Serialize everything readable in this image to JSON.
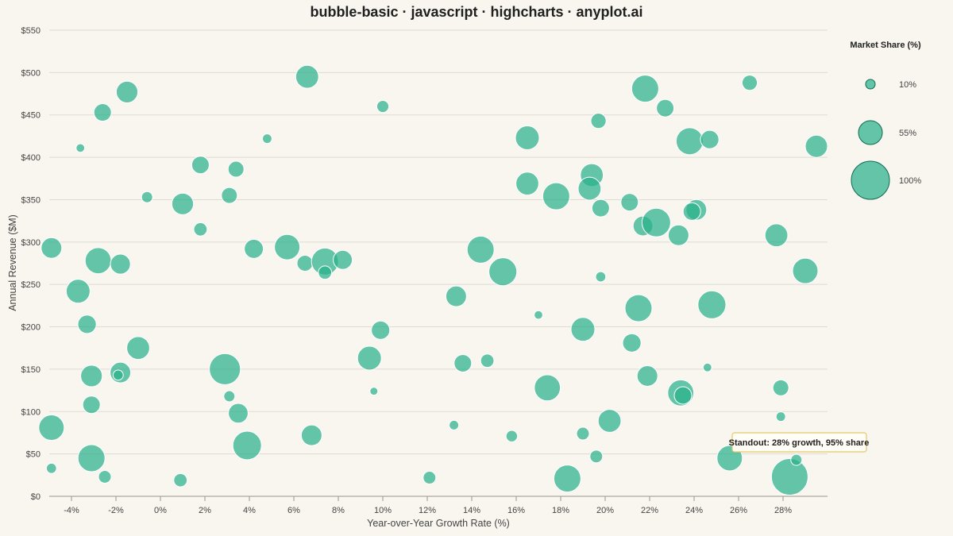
{
  "chart_data": {
    "type": "scatter",
    "variant": "bubble",
    "title": "bubble-basic · javascript · highcharts · anyplot.ai",
    "xlabel": "Year-over-Year Growth Rate (%)",
    "ylabel": "Annual Revenue ($M)",
    "xlim": [
      -5,
      30
    ],
    "ylim": [
      0,
      550
    ],
    "x_ticks": [
      -4,
      -2,
      0,
      2,
      4,
      6,
      8,
      10,
      12,
      14,
      16,
      18,
      20,
      22,
      24,
      26,
      28
    ],
    "x_tick_labels": [
      "-4%",
      "-2%",
      "0%",
      "2%",
      "4%",
      "6%",
      "8%",
      "10%",
      "12%",
      "14%",
      "16%",
      "18%",
      "20%",
      "22%",
      "24%",
      "26%",
      "28%"
    ],
    "y_ticks": [
      0,
      50,
      100,
      150,
      200,
      250,
      300,
      350,
      400,
      450,
      500,
      550
    ],
    "y_tick_labels": [
      "$0",
      "$50",
      "$100",
      "$150",
      "$200",
      "$250",
      "$300",
      "$350",
      "$400",
      "$450",
      "$500",
      "$550"
    ],
    "grid": true,
    "colors": {
      "bubble": "#2ab08a",
      "highlight_ring": "#e2c96a",
      "background": "#f8f6ef"
    },
    "size_legend": {
      "title": "Market Share (%)",
      "placement": "right",
      "entries": [
        {
          "value": 10,
          "label": "10%"
        },
        {
          "value": 55,
          "label": "55%"
        },
        {
          "value": 100,
          "label": "100%"
        }
      ]
    },
    "annotation": {
      "text": "Standout: 28% growth, 95% share",
      "x": 28.3,
      "y": 23
    },
    "series": [
      {
        "points": [
          {
            "x": -4.9,
            "y": 293,
            "size": 45
          },
          {
            "x": -4.9,
            "y": 81,
            "size": 60
          },
          {
            "x": -4.9,
            "y": 33,
            "size": 12
          },
          {
            "x": -3.7,
            "y": 242,
            "size": 55
          },
          {
            "x": -3.6,
            "y": 411,
            "size": 7
          },
          {
            "x": -3.3,
            "y": 203,
            "size": 38
          },
          {
            "x": -3.1,
            "y": 142,
            "size": 48
          },
          {
            "x": -3.1,
            "y": 108,
            "size": 35
          },
          {
            "x": -3.1,
            "y": 45,
            "size": 65
          },
          {
            "x": -2.8,
            "y": 278,
            "size": 62
          },
          {
            "x": -2.6,
            "y": 453,
            "size": 35
          },
          {
            "x": -2.5,
            "y": 23,
            "size": 20
          },
          {
            "x": -1.8,
            "y": 274,
            "size": 43
          },
          {
            "x": -1.8,
            "y": 146,
            "size": 45
          },
          {
            "x": -1.9,
            "y": 143,
            "size": 12
          },
          {
            "x": -1.5,
            "y": 477,
            "size": 48
          },
          {
            "x": -1.0,
            "y": 175,
            "size": 52
          },
          {
            "x": -0.6,
            "y": 353,
            "size": 15
          },
          {
            "x": 0.9,
            "y": 19,
            "size": 22
          },
          {
            "x": 1.0,
            "y": 345,
            "size": 48
          },
          {
            "x": 1.8,
            "y": 391,
            "size": 35
          },
          {
            "x": 1.8,
            "y": 315,
            "size": 22
          },
          {
            "x": 2.9,
            "y": 150,
            "size": 78
          },
          {
            "x": 3.1,
            "y": 355,
            "size": 30
          },
          {
            "x": 3.1,
            "y": 118,
            "size": 15
          },
          {
            "x": 3.4,
            "y": 386,
            "size": 30
          },
          {
            "x": 3.5,
            "y": 98,
            "size": 42
          },
          {
            "x": 3.9,
            "y": 60,
            "size": 70
          },
          {
            "x": 4.2,
            "y": 292,
            "size": 40
          },
          {
            "x": 4.8,
            "y": 422,
            "size": 10
          },
          {
            "x": 5.7,
            "y": 294,
            "size": 60
          },
          {
            "x": 6.6,
            "y": 495,
            "size": 52
          },
          {
            "x": 6.5,
            "y": 275,
            "size": 30
          },
          {
            "x": 6.8,
            "y": 72,
            "size": 45
          },
          {
            "x": 7.4,
            "y": 277,
            "size": 65
          },
          {
            "x": 7.4,
            "y": 264,
            "size": 22
          },
          {
            "x": 8.2,
            "y": 279,
            "size": 40
          },
          {
            "x": 9.4,
            "y": 163,
            "size": 55
          },
          {
            "x": 9.6,
            "y": 124,
            "size": 5
          },
          {
            "x": 9.9,
            "y": 196,
            "size": 38
          },
          {
            "x": 10.0,
            "y": 460,
            "size": 18
          },
          {
            "x": 12.1,
            "y": 22,
            "size": 20
          },
          {
            "x": 13.2,
            "y": 84,
            "size": 10
          },
          {
            "x": 13.3,
            "y": 236,
            "size": 45
          },
          {
            "x": 13.6,
            "y": 157,
            "size": 35
          },
          {
            "x": 14.4,
            "y": 291,
            "size": 65
          },
          {
            "x": 14.7,
            "y": 160,
            "size": 22
          },
          {
            "x": 15.4,
            "y": 265,
            "size": 68
          },
          {
            "x": 15.8,
            "y": 71,
            "size": 16
          },
          {
            "x": 16.5,
            "y": 423,
            "size": 55
          },
          {
            "x": 16.5,
            "y": 369,
            "size": 52
          },
          {
            "x": 17.0,
            "y": 214,
            "size": 7
          },
          {
            "x": 17.4,
            "y": 128,
            "size": 62
          },
          {
            "x": 17.8,
            "y": 354,
            "size": 65
          },
          {
            "x": 18.3,
            "y": 21,
            "size": 65
          },
          {
            "x": 19.0,
            "y": 197,
            "size": 55
          },
          {
            "x": 19.0,
            "y": 74,
            "size": 20
          },
          {
            "x": 19.4,
            "y": 379,
            "size": 52
          },
          {
            "x": 19.3,
            "y": 363,
            "size": 52
          },
          {
            "x": 19.6,
            "y": 47,
            "size": 20
          },
          {
            "x": 19.7,
            "y": 443,
            "size": 28
          },
          {
            "x": 19.8,
            "y": 340,
            "size": 35
          },
          {
            "x": 19.8,
            "y": 259,
            "size": 12
          },
          {
            "x": 20.2,
            "y": 89,
            "size": 52
          },
          {
            "x": 21.1,
            "y": 347,
            "size": 35
          },
          {
            "x": 21.2,
            "y": 181,
            "size": 38
          },
          {
            "x": 21.5,
            "y": 222,
            "size": 65
          },
          {
            "x": 21.7,
            "y": 319,
            "size": 42
          },
          {
            "x": 21.8,
            "y": 481,
            "size": 65
          },
          {
            "x": 21.9,
            "y": 142,
            "size": 45
          },
          {
            "x": 22.3,
            "y": 323,
            "size": 70
          },
          {
            "x": 22.7,
            "y": 458,
            "size": 35
          },
          {
            "x": 23.3,
            "y": 308,
            "size": 45
          },
          {
            "x": 23.4,
            "y": 122,
            "size": 62
          },
          {
            "x": 23.5,
            "y": 119,
            "size": 35
          },
          {
            "x": 23.8,
            "y": 419,
            "size": 65
          },
          {
            "x": 24.1,
            "y": 338,
            "size": 45
          },
          {
            "x": 23.9,
            "y": 336,
            "size": 35
          },
          {
            "x": 24.6,
            "y": 152,
            "size": 7
          },
          {
            "x": 24.7,
            "y": 421,
            "size": 38
          },
          {
            "x": 24.8,
            "y": 226,
            "size": 68
          },
          {
            "x": 25.6,
            "y": 45,
            "size": 60
          },
          {
            "x": 26.5,
            "y": 488,
            "size": 28
          },
          {
            "x": 27.7,
            "y": 308,
            "size": 52
          },
          {
            "x": 27.9,
            "y": 128,
            "size": 30
          },
          {
            "x": 27.9,
            "y": 94,
            "size": 10
          },
          {
            "x": 28.3,
            "y": 23,
            "size": 95,
            "highlight": true
          },
          {
            "x": 28.6,
            "y": 43,
            "size": 15
          },
          {
            "x": 29.0,
            "y": 266,
            "size": 60
          },
          {
            "x": 29.5,
            "y": 413,
            "size": 50
          }
        ]
      }
    ]
  }
}
